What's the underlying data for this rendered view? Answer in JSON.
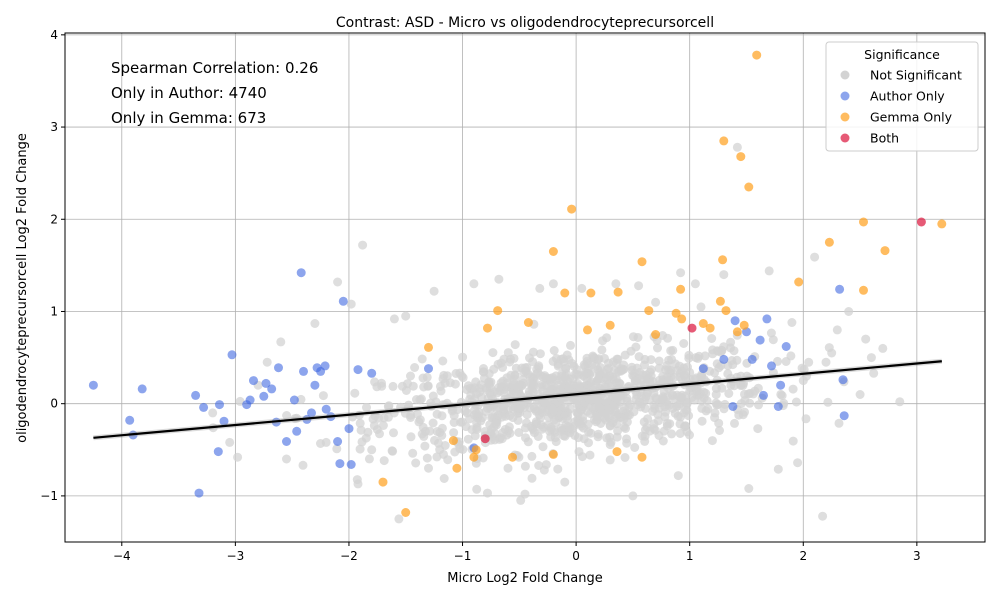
{
  "chart_data": {
    "type": "scatter",
    "title": "Contrast: ASD - Micro vs oligodendrocyteprecursorcell",
    "xlabel": "Micro Log2 Fold Change",
    "ylabel": "oligodendrocyteprecursorcell Log2 Fold Change",
    "xlim": [
      -4.5,
      3.6
    ],
    "ylim": [
      -1.5,
      4.02
    ],
    "x_ticks": [
      -4,
      -3,
      -2,
      -1,
      0,
      1,
      2,
      3
    ],
    "y_ticks": [
      -1,
      0,
      1,
      2,
      3,
      4
    ],
    "x_tick_labels": [
      "−4",
      "−3",
      "−2",
      "−1",
      "0",
      "1",
      "2",
      "3"
    ],
    "y_tick_labels": [
      "−1",
      "0",
      "1",
      "2",
      "3",
      "4"
    ],
    "grid": true,
    "annotations": [
      "Spearman Correlation: 0.26",
      "Only in Author: 4740",
      "Only in Gemma: 673"
    ],
    "legend": {
      "title": "Significance",
      "placement": "top-right",
      "entries": [
        "Not Significant",
        "Author Only",
        "Gemma Only",
        "Both"
      ]
    },
    "colors": {
      "Not Significant": "#d3d3d3",
      "Author Only": "#4169e1",
      "Gemma Only": "#ff9f1c",
      "Both": "#dc143c"
    },
    "regression_line": {
      "x": [
        -4.25,
        3.22
      ],
      "y": [
        -0.37,
        0.46
      ]
    },
    "series": [
      {
        "name": "Not Significant",
        "points": [
          [
            -3.05,
            -0.42
          ],
          [
            -2.98,
            -0.58
          ],
          [
            -2.72,
            0.45
          ],
          [
            -2.6,
            0.67
          ],
          [
            -2.3,
            0.87
          ],
          [
            -2.1,
            1.32
          ],
          [
            -1.98,
            1.08
          ],
          [
            -1.88,
            1.72
          ],
          [
            -1.6,
            0.92
          ],
          [
            -1.25,
            1.22
          ],
          [
            -0.9,
            1.3
          ],
          [
            -0.68,
            1.35
          ],
          [
            -0.32,
            1.25
          ],
          [
            -0.2,
            1.3
          ],
          [
            0.05,
            1.25
          ],
          [
            0.35,
            1.3
          ],
          [
            0.55,
            1.28
          ],
          [
            0.92,
            1.42
          ],
          [
            1.05,
            1.3
          ],
          [
            1.3,
            1.4
          ],
          [
            1.42,
            2.78
          ],
          [
            1.7,
            1.44
          ],
          [
            2.1,
            1.59
          ],
          [
            2.4,
            1.0
          ],
          [
            2.55,
            0.7
          ],
          [
            2.7,
            0.6
          ],
          [
            2.62,
            0.33
          ],
          [
            2.85,
            0.02
          ],
          [
            2.17,
            -1.22
          ],
          [
            1.78,
            -0.71
          ],
          [
            1.52,
            -0.92
          ],
          [
            1.95,
            -0.64
          ],
          [
            0.5,
            -1.0
          ],
          [
            -0.45,
            -0.98
          ],
          [
            -0.78,
            -0.97
          ],
          [
            -1.56,
            -1.25
          ],
          [
            -1.92,
            -0.87
          ],
          [
            -0.28,
            -0.72
          ],
          [
            -0.1,
            -0.85
          ],
          [
            0.9,
            -0.78
          ],
          [
            2.3,
            0.8
          ],
          [
            2.2,
            0.45
          ],
          [
            2.5,
            0.1
          ],
          [
            1.9,
            0.88
          ],
          [
            2.0,
            0.25
          ],
          [
            -2.55,
            -0.6
          ],
          [
            -2.2,
            -0.42
          ],
          [
            -1.8,
            -0.5
          ],
          [
            -1.3,
            -0.7
          ],
          [
            1.2,
            -0.4
          ],
          [
            1.6,
            -0.27
          ],
          [
            0.3,
            -0.61
          ],
          [
            -0.6,
            -0.7
          ],
          [
            2.6,
            0.5
          ],
          [
            1.1,
            1.05
          ],
          [
            0.7,
            1.1
          ],
          [
            -1.5,
            0.95
          ],
          [
            -2.8,
            0.2
          ],
          [
            -3.2,
            -0.1
          ],
          [
            2.25,
            0.55
          ]
        ]
      },
      {
        "name": "Author Only",
        "points": [
          [
            -4.25,
            0.2
          ],
          [
            -3.93,
            -0.18
          ],
          [
            -3.9,
            -0.34
          ],
          [
            -3.82,
            0.16
          ],
          [
            -3.35,
            0.09
          ],
          [
            -3.32,
            -0.97
          ],
          [
            -3.28,
            -0.04
          ],
          [
            -3.15,
            -0.52
          ],
          [
            -3.14,
            -0.01
          ],
          [
            -3.1,
            -0.19
          ],
          [
            -3.03,
            0.53
          ],
          [
            -2.9,
            -0.01
          ],
          [
            -2.87,
            0.04
          ],
          [
            -2.84,
            0.25
          ],
          [
            -2.75,
            0.08
          ],
          [
            -2.73,
            0.22
          ],
          [
            -2.68,
            0.16
          ],
          [
            -2.64,
            -0.2
          ],
          [
            -2.62,
            0.39
          ],
          [
            -2.55,
            -0.41
          ],
          [
            -2.48,
            0.04
          ],
          [
            -2.46,
            -0.3
          ],
          [
            -2.42,
            1.42
          ],
          [
            -2.4,
            0.35
          ],
          [
            -2.37,
            -0.17
          ],
          [
            -2.33,
            -0.1
          ],
          [
            -2.3,
            0.2
          ],
          [
            -2.28,
            0.39
          ],
          [
            -2.25,
            0.35
          ],
          [
            -2.21,
            0.41
          ],
          [
            -2.2,
            -0.06
          ],
          [
            -2.16,
            -0.14
          ],
          [
            -2.1,
            -0.41
          ],
          [
            -2.08,
            -0.65
          ],
          [
            -2.05,
            1.11
          ],
          [
            -2.0,
            -0.27
          ],
          [
            -1.98,
            -0.66
          ],
          [
            -1.92,
            0.37
          ],
          [
            -1.8,
            0.33
          ],
          [
            -1.3,
            0.38
          ],
          [
            -0.9,
            -0.48
          ],
          [
            1.12,
            0.38
          ],
          [
            1.3,
            0.48
          ],
          [
            1.4,
            0.9
          ],
          [
            1.5,
            0.78
          ],
          [
            1.62,
            0.69
          ],
          [
            1.65,
            0.09
          ],
          [
            1.68,
            0.92
          ],
          [
            1.72,
            0.41
          ],
          [
            1.78,
            -0.03
          ],
          [
            1.8,
            0.2
          ],
          [
            1.85,
            0.62
          ],
          [
            2.32,
            1.24
          ],
          [
            2.35,
            0.26
          ],
          [
            2.36,
            -0.13
          ],
          [
            1.38,
            -0.03
          ],
          [
            1.55,
            0.48
          ]
        ]
      },
      {
        "name": "Gemma Only",
        "points": [
          [
            1.59,
            3.78
          ],
          [
            1.3,
            2.85
          ],
          [
            1.45,
            2.68
          ],
          [
            1.52,
            2.35
          ],
          [
            -0.04,
            2.11
          ],
          [
            2.53,
            1.97
          ],
          [
            3.22,
            1.95
          ],
          [
            2.23,
            1.75
          ],
          [
            2.72,
            1.66
          ],
          [
            -0.2,
            1.65
          ],
          [
            0.58,
            1.54
          ],
          [
            1.29,
            1.56
          ],
          [
            1.96,
            1.32
          ],
          [
            -0.1,
            1.2
          ],
          [
            0.13,
            1.2
          ],
          [
            0.37,
            1.21
          ],
          [
            2.53,
            1.23
          ],
          [
            0.92,
            1.24
          ],
          [
            1.27,
            1.11
          ],
          [
            -0.69,
            1.01
          ],
          [
            0.64,
            1.01
          ],
          [
            1.32,
            1.01
          ],
          [
            0.88,
            0.98
          ],
          [
            1.12,
            0.87
          ],
          [
            1.48,
            0.85
          ],
          [
            1.18,
            0.82
          ],
          [
            -0.78,
            0.82
          ],
          [
            1.42,
            0.78
          ],
          [
            0.93,
            0.92
          ],
          [
            -1.3,
            0.61
          ],
          [
            -1.05,
            -0.7
          ],
          [
            -0.9,
            -0.58
          ],
          [
            -0.56,
            -0.58
          ],
          [
            0.36,
            -0.52
          ],
          [
            0.58,
            -0.58
          ],
          [
            -0.88,
            -0.5
          ],
          [
            -1.7,
            -0.85
          ],
          [
            -1.5,
            -1.18
          ],
          [
            -0.42,
            0.88
          ],
          [
            0.1,
            0.8
          ],
          [
            0.3,
            0.85
          ],
          [
            0.7,
            0.75
          ],
          [
            -0.2,
            -0.55
          ],
          [
            -1.08,
            -0.4
          ]
        ]
      },
      {
        "name": "Both",
        "points": [
          [
            3.04,
            1.97
          ],
          [
            1.02,
            0.82
          ],
          [
            -0.8,
            -0.38
          ]
        ]
      }
    ]
  }
}
